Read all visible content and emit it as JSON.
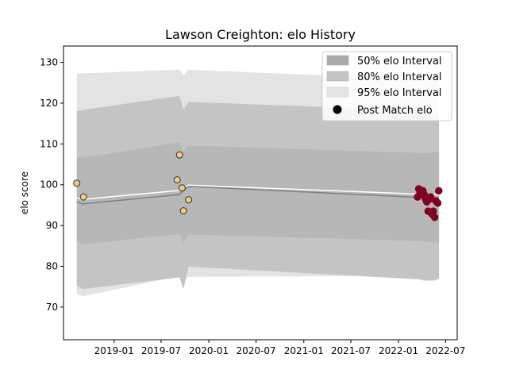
{
  "chart_data": {
    "type": "line",
    "title": "Lawson Creighton: elo History",
    "xlabel": "",
    "ylabel": "elo score",
    "ylim": [
      62,
      134
    ],
    "xlim": [
      "2018-06-20",
      "2022-08-15"
    ],
    "x_ticks": [
      "2019-01",
      "2019-07",
      "2020-01",
      "2020-07",
      "2021-01",
      "2021-07",
      "2022-01",
      "2022-07"
    ],
    "y_ticks": [
      70,
      80,
      90,
      100,
      110,
      120,
      130
    ],
    "legend": {
      "placement": "top-right",
      "entries": [
        "50% elo Interval",
        "80% elo Interval",
        "95% elo Interval",
        "Post Match elo"
      ]
    },
    "colors": {
      "band50": "#aaaaaa",
      "band80": "#c4c4c4",
      "band95": "#e3e3e3",
      "mean": "#808080",
      "median": "#ffffff",
      "point_early": "#ffd040",
      "point_early_edge": "#2020a0",
      "point_late": "#800020"
    },
    "series": {
      "bands": {
        "x": [
          "2018-08-10",
          "2018-09-01",
          "2019-09-10",
          "2019-09-25",
          "2019-10-15",
          "2022-03-20",
          "2022-04-10",
          "2022-05-20",
          "2022-06-05",
          "2022-06-06"
        ],
        "low95": [
          73.2,
          72.6,
          77.6,
          77.0,
          77.4,
          77.7,
          76.8,
          76.9,
          77.0,
          77.0
        ],
        "high95": [
          127.3,
          127.3,
          128.2,
          126.8,
          128.2,
          125.8,
          125.8,
          125.5,
          125.5,
          125.5
        ],
        "low80": [
          75.3,
          74.4,
          77.3,
          74.4,
          79.9,
          76.8,
          76.5,
          76.5,
          77.0,
          77.0
        ],
        "high80": [
          118.0,
          118.3,
          121.8,
          118.3,
          120.3,
          118.2,
          118.3,
          117.2,
          117.3,
          117.3
        ],
        "low50": [
          86.3,
          85.4,
          87.9,
          85.8,
          87.8,
          86.2,
          86.2,
          85.8,
          85.9,
          85.9
        ],
        "high50": [
          106.8,
          106.6,
          110.4,
          108.1,
          109.6,
          107.8,
          107.7,
          108.0,
          107.9,
          107.9
        ]
      },
      "mean_line": {
        "x": [
          "2018-08-10",
          "2018-09-01",
          "2019-09-10",
          "2019-09-25",
          "2019-10-15",
          "2022-03-20",
          "2022-04-10",
          "2022-05-20",
          "2022-06-05"
        ],
        "y": [
          95.8,
          95.3,
          97.6,
          98.6,
          99.6,
          96.9,
          97.0,
          96.8,
          96.8
        ]
      },
      "median_line": {
        "x": [
          "2018-08-10",
          "2018-09-01",
          "2019-09-10",
          "2019-09-25",
          "2019-10-15",
          "2022-03-20",
          "2022-04-10",
          "2022-05-20",
          "2022-06-05"
        ],
        "y": [
          96.8,
          96.4,
          98.6,
          99.3,
          99.9,
          97.7,
          97.8,
          97.6,
          97.5
        ]
      },
      "points_early": {
        "x": [
          "2018-08-10",
          "2018-09-05",
          "2019-09-01",
          "2019-09-10",
          "2019-09-20",
          "2019-09-25",
          "2019-10-15"
        ],
        "y": [
          100.4,
          97.0,
          101.2,
          107.3,
          99.2,
          93.6,
          96.3
        ]
      },
      "points_late": {
        "x": [
          "2022-03-15",
          "2022-03-20",
          "2022-03-25",
          "2022-04-01",
          "2022-04-05",
          "2022-04-10",
          "2022-04-15",
          "2022-04-20",
          "2022-04-25",
          "2022-05-01",
          "2022-05-05",
          "2022-05-10",
          "2022-05-15",
          "2022-05-20",
          "2022-05-25",
          "2022-06-01",
          "2022-06-05"
        ],
        "y": [
          97.0,
          99.0,
          98.0,
          97.5,
          98.5,
          97.6,
          96.5,
          95.8,
          93.5,
          96.5,
          97.0,
          92.8,
          93.5,
          92.0,
          96.0,
          95.5,
          98.5
        ]
      }
    }
  }
}
